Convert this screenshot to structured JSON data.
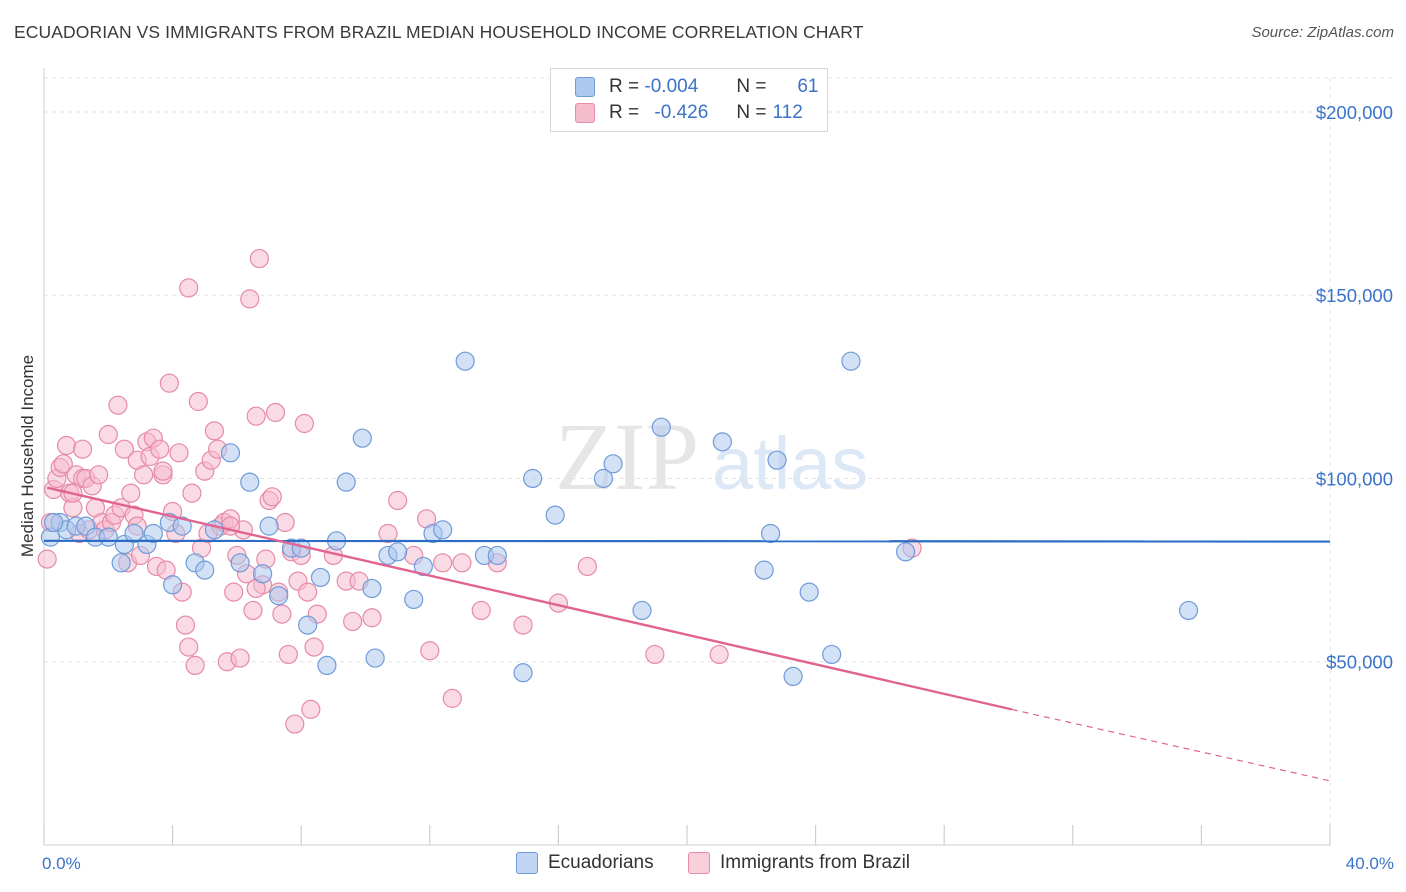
{
  "title": "ECUADORIAN VS IMMIGRANTS FROM BRAZIL MEDIAN HOUSEHOLD INCOME CORRELATION CHART",
  "source": "Source: ZipAtlas.com",
  "watermark": {
    "zip": "ZIP",
    "atlas": "atlas"
  },
  "colors": {
    "blue_fill": "#adc8ee",
    "blue_stroke": "#6f9bd8",
    "blue_line": "#2b6cc4",
    "pink_fill": "#f5bccd",
    "pink_stroke": "#e68aa7",
    "pink_line": "#e0648f",
    "axis_text": "#3a73c9",
    "grid": "#e3e3e3"
  },
  "legend": {
    "r_label": "R =",
    "n_label": "N =",
    "rows": [
      {
        "r": "-0.004",
        "n": "61"
      },
      {
        "r": "-0.426",
        "n": "112"
      }
    ]
  },
  "bottom_legend": [
    "Ecuadorians",
    "Immigrants from Brazil"
  ],
  "chart_data": {
    "type": "scatter",
    "xlabel": "",
    "ylabel": "Median Household Income",
    "x_tick_labels": [
      "0.0%",
      "40.0%"
    ],
    "y_tick_labels": [
      "$50,000",
      "$100,000",
      "$150,000",
      "$200,000"
    ],
    "xlim": [
      0,
      40
    ],
    "ylim": [
      0,
      212000
    ],
    "y_ticks": [
      50000,
      100000,
      150000,
      200000
    ],
    "grid": true,
    "series": [
      {
        "name": "Ecuadorians",
        "r": -0.004,
        "n": 61,
        "trend": {
          "x": [
            0,
            40
          ],
          "y": [
            83000,
            82800
          ],
          "dashed_from": null
        },
        "points": [
          [
            0.2,
            84000
          ],
          [
            0.5,
            88000
          ],
          [
            0.7,
            86000
          ],
          [
            1.0,
            87000
          ],
          [
            1.3,
            87000
          ],
          [
            1.6,
            84000
          ],
          [
            2.0,
            84000
          ],
          [
            2.4,
            77000
          ],
          [
            2.5,
            82000
          ],
          [
            2.8,
            85000
          ],
          [
            3.2,
            82000
          ],
          [
            3.4,
            85000
          ],
          [
            3.9,
            88000
          ],
          [
            4.0,
            71000
          ],
          [
            4.3,
            87000
          ],
          [
            4.7,
            77000
          ],
          [
            5.0,
            75000
          ],
          [
            5.3,
            86000
          ],
          [
            5.8,
            107000
          ],
          [
            6.1,
            77000
          ],
          [
            6.4,
            99000
          ],
          [
            6.8,
            74000
          ],
          [
            7.0,
            87000
          ],
          [
            7.3,
            68000
          ],
          [
            7.7,
            81000
          ],
          [
            8.0,
            81000
          ],
          [
            8.2,
            60000
          ],
          [
            8.6,
            73000
          ],
          [
            8.8,
            49000
          ],
          [
            9.1,
            83000
          ],
          [
            9.4,
            99000
          ],
          [
            9.9,
            111000
          ],
          [
            10.2,
            70000
          ],
          [
            10.3,
            51000
          ],
          [
            10.7,
            79000
          ],
          [
            11.0,
            80000
          ],
          [
            11.5,
            67000
          ],
          [
            11.8,
            76000
          ],
          [
            12.1,
            85000
          ],
          [
            12.4,
            86000
          ],
          [
            13.1,
            132000
          ],
          [
            13.7,
            79000
          ],
          [
            14.1,
            79000
          ],
          [
            14.9,
            47000
          ],
          [
            15.2,
            100000
          ],
          [
            15.9,
            90000
          ],
          [
            17.4,
            100000
          ],
          [
            17.7,
            104000
          ],
          [
            18.6,
            64000
          ],
          [
            19.2,
            114000
          ],
          [
            21.1,
            110000
          ],
          [
            22.4,
            75000
          ],
          [
            22.6,
            85000
          ],
          [
            22.8,
            105000
          ],
          [
            23.3,
            46000
          ],
          [
            23.8,
            69000
          ],
          [
            24.5,
            52000
          ],
          [
            25.1,
            132000
          ],
          [
            26.8,
            80000
          ],
          [
            35.6,
            64000
          ],
          [
            0.3,
            88000
          ]
        ]
      },
      {
        "name": "Immigrants from Brazil",
        "r": -0.426,
        "n": 112,
        "trend": {
          "x": [
            0.1,
            30.1,
            40
          ],
          "y": [
            97500,
            37000,
            17500
          ],
          "dashed_from": 30.1
        },
        "points": [
          [
            0.1,
            78000
          ],
          [
            0.2,
            88000
          ],
          [
            0.3,
            97000
          ],
          [
            0.4,
            100000
          ],
          [
            0.5,
            103000
          ],
          [
            0.6,
            104000
          ],
          [
            0.7,
            109000
          ],
          [
            0.8,
            96000
          ],
          [
            0.9,
            92000
          ],
          [
            1.0,
            101000
          ],
          [
            1.1,
            85000
          ],
          [
            1.2,
            100000
          ],
          [
            1.3,
            100000
          ],
          [
            1.4,
            86000
          ],
          [
            1.5,
            98000
          ],
          [
            1.6,
            92000
          ],
          [
            1.7,
            101000
          ],
          [
            1.8,
            88000
          ],
          [
            1.9,
            86000
          ],
          [
            2.0,
            112000
          ],
          [
            2.1,
            88000
          ],
          [
            2.2,
            90000
          ],
          [
            2.3,
            120000
          ],
          [
            2.4,
            92000
          ],
          [
            2.5,
            108000
          ],
          [
            2.6,
            77000
          ],
          [
            2.7,
            96000
          ],
          [
            2.8,
            90000
          ],
          [
            2.9,
            105000
          ],
          [
            3.0,
            79000
          ],
          [
            3.1,
            101000
          ],
          [
            3.2,
            110000
          ],
          [
            3.3,
            106000
          ],
          [
            3.4,
            111000
          ],
          [
            3.5,
            76000
          ],
          [
            3.6,
            108000
          ],
          [
            3.7,
            101000
          ],
          [
            3.8,
            75000
          ],
          [
            3.9,
            126000
          ],
          [
            4.0,
            91000
          ],
          [
            4.1,
            85000
          ],
          [
            4.2,
            107000
          ],
          [
            4.3,
            69000
          ],
          [
            4.4,
            60000
          ],
          [
            4.5,
            54000
          ],
          [
            4.6,
            96000
          ],
          [
            4.7,
            49000
          ],
          [
            4.8,
            121000
          ],
          [
            4.9,
            81000
          ],
          [
            5.0,
            102000
          ],
          [
            5.1,
            85000
          ],
          [
            5.2,
            105000
          ],
          [
            5.3,
            113000
          ],
          [
            5.4,
            108000
          ],
          [
            5.5,
            87000
          ],
          [
            5.6,
            88000
          ],
          [
            5.7,
            50000
          ],
          [
            5.8,
            89000
          ],
          [
            5.9,
            69000
          ],
          [
            6.0,
            79000
          ],
          [
            6.1,
            51000
          ],
          [
            6.2,
            86000
          ],
          [
            6.3,
            74000
          ],
          [
            6.4,
            149000
          ],
          [
            6.5,
            64000
          ],
          [
            6.6,
            117000
          ],
          [
            6.7,
            160000
          ],
          [
            6.8,
            71000
          ],
          [
            6.9,
            78000
          ],
          [
            7.0,
            94000
          ],
          [
            7.1,
            95000
          ],
          [
            7.2,
            118000
          ],
          [
            7.3,
            69000
          ],
          [
            7.4,
            63000
          ],
          [
            7.5,
            88000
          ],
          [
            7.6,
            52000
          ],
          [
            7.7,
            80000
          ],
          [
            7.8,
            33000
          ],
          [
            7.9,
            72000
          ],
          [
            8.0,
            79000
          ],
          [
            8.1,
            115000
          ],
          [
            8.2,
            69000
          ],
          [
            8.3,
            37000
          ],
          [
            8.4,
            54000
          ],
          [
            8.5,
            63000
          ],
          [
            9.0,
            79000
          ],
          [
            9.4,
            72000
          ],
          [
            9.6,
            61000
          ],
          [
            9.8,
            72000
          ],
          [
            10.2,
            62000
          ],
          [
            10.7,
            85000
          ],
          [
            11.0,
            94000
          ],
          [
            11.5,
            79000
          ],
          [
            11.9,
            89000
          ],
          [
            12.0,
            53000
          ],
          [
            12.4,
            77000
          ],
          [
            12.7,
            40000
          ],
          [
            13.0,
            77000
          ],
          [
            13.6,
            64000
          ],
          [
            14.1,
            77000
          ],
          [
            14.9,
            60000
          ],
          [
            16.0,
            66000
          ],
          [
            16.9,
            76000
          ],
          [
            19.0,
            52000
          ],
          [
            21.0,
            52000
          ],
          [
            27.0,
            81000
          ],
          [
            4.5,
            152000
          ],
          [
            3.7,
            102000
          ],
          [
            2.9,
            87000
          ],
          [
            1.2,
            108000
          ],
          [
            0.9,
            96000
          ],
          [
            5.8,
            87000
          ],
          [
            6.6,
            70000
          ]
        ]
      }
    ]
  }
}
